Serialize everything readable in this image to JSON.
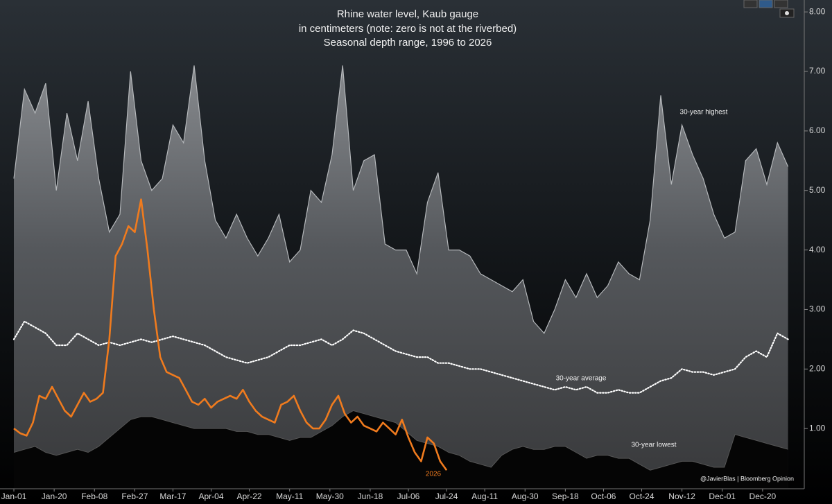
{
  "chart_data": {
    "type": "area-line",
    "title": "Rhine water level, Kaub gauge",
    "subtitle": [
      "in centimeters (note: zero is not at the riverbed)",
      "Seasonal depth range, 1996 to 2026"
    ],
    "source": "@JavierBlas | Bloomberg Opinion",
    "xlim": [
      0,
      372
    ],
    "xticks": [
      {
        "value": 0,
        "label": "Jan-01"
      },
      {
        "value": 19,
        "label": "Jan-20"
      },
      {
        "value": 38,
        "label": "Feb-08"
      },
      {
        "value": 57,
        "label": "Feb-27"
      },
      {
        "value": 75,
        "label": "Mar-17"
      },
      {
        "value": 93,
        "label": "Apr-04"
      },
      {
        "value": 111,
        "label": "Apr-22"
      },
      {
        "value": 130,
        "label": "May-11"
      },
      {
        "value": 149,
        "label": "May-30"
      },
      {
        "value": 168,
        "label": "Jun-18"
      },
      {
        "value": 186,
        "label": "Jul-06"
      },
      {
        "value": 204,
        "label": "Jul-24"
      },
      {
        "value": 222,
        "label": "Aug-11"
      },
      {
        "value": 241,
        "label": "Aug-30"
      },
      {
        "value": 260,
        "label": "Sep-18"
      },
      {
        "value": 278,
        "label": "Oct-06"
      },
      {
        "value": 296,
        "label": "Oct-24"
      },
      {
        "value": 315,
        "label": "Nov-12"
      },
      {
        "value": 334,
        "label": "Dec-01"
      },
      {
        "value": 353,
        "label": "Dec-20"
      }
    ],
    "ylim": [
      0,
      8.2
    ],
    "yticks": [
      {
        "value": 1,
        "label": "1.00"
      },
      {
        "value": 2,
        "label": "2.00"
      },
      {
        "value": 3,
        "label": "3.00"
      },
      {
        "value": 4,
        "label": "4.00"
      },
      {
        "value": 5,
        "label": "5.00"
      },
      {
        "value": 6,
        "label": "6.00"
      },
      {
        "value": 7,
        "label": "7.00"
      },
      {
        "value": 8,
        "label": "8.00"
      }
    ],
    "series": [
      {
        "name": "30-year highest",
        "style": "area",
        "color": "#8a8d91",
        "x": [
          0,
          5,
          10,
          15,
          20,
          25,
          30,
          35,
          40,
          45,
          50,
          55,
          60,
          65,
          70,
          75,
          80,
          85,
          90,
          95,
          100,
          105,
          110,
          115,
          120,
          125,
          130,
          135,
          140,
          145,
          150,
          155,
          160,
          165,
          170,
          175,
          180,
          185,
          190,
          195,
          200,
          205,
          210,
          215,
          220,
          225,
          230,
          235,
          240,
          245,
          250,
          255,
          260,
          265,
          270,
          275,
          280,
          285,
          290,
          295,
          300,
          305,
          310,
          315,
          320,
          325,
          330,
          335,
          340,
          345,
          350,
          355,
          360,
          365
        ],
        "values": [
          5.2,
          6.7,
          6.3,
          6.8,
          5.0,
          6.3,
          5.5,
          6.5,
          5.2,
          4.3,
          4.6,
          7.0,
          5.5,
          5.0,
          5.2,
          6.1,
          5.8,
          7.1,
          5.5,
          4.5,
          4.2,
          4.6,
          4.2,
          3.9,
          4.2,
          4.6,
          3.8,
          4.0,
          5.0,
          4.8,
          5.6,
          7.1,
          5.0,
          5.5,
          5.6,
          4.1,
          4.0,
          4.0,
          3.6,
          4.8,
          5.3,
          4.0,
          4.0,
          3.9,
          3.6,
          3.5,
          3.4,
          3.3,
          3.5,
          2.8,
          2.6,
          3.0,
          3.5,
          3.2,
          3.6,
          3.2,
          3.4,
          3.8,
          3.6,
          3.5,
          4.5,
          6.6,
          5.1,
          6.1,
          5.6,
          5.2,
          4.6,
          4.2,
          4.3,
          5.5,
          5.7,
          5.1,
          5.8,
          5.4
        ]
      },
      {
        "name": "30-year average",
        "style": "dotted",
        "color": "#ffffff",
        "x": [
          0,
          5,
          10,
          15,
          20,
          25,
          30,
          35,
          40,
          45,
          50,
          55,
          60,
          65,
          70,
          75,
          80,
          85,
          90,
          95,
          100,
          105,
          110,
          115,
          120,
          125,
          130,
          135,
          140,
          145,
          150,
          155,
          160,
          165,
          170,
          175,
          180,
          185,
          190,
          195,
          200,
          205,
          210,
          215,
          220,
          225,
          230,
          235,
          240,
          245,
          250,
          255,
          260,
          265,
          270,
          275,
          280,
          285,
          290,
          295,
          300,
          305,
          310,
          315,
          320,
          325,
          330,
          335,
          340,
          345,
          350,
          355,
          360,
          365
        ],
        "values": [
          2.5,
          2.8,
          2.7,
          2.6,
          2.4,
          2.4,
          2.6,
          2.5,
          2.4,
          2.45,
          2.4,
          2.45,
          2.5,
          2.45,
          2.5,
          2.55,
          2.5,
          2.45,
          2.4,
          2.3,
          2.2,
          2.15,
          2.1,
          2.15,
          2.2,
          2.3,
          2.4,
          2.4,
          2.45,
          2.5,
          2.4,
          2.5,
          2.65,
          2.6,
          2.5,
          2.4,
          2.3,
          2.25,
          2.2,
          2.2,
          2.1,
          2.1,
          2.05,
          2.0,
          2.0,
          1.95,
          1.9,
          1.85,
          1.8,
          1.75,
          1.7,
          1.65,
          1.7,
          1.65,
          1.7,
          1.6,
          1.6,
          1.65,
          1.6,
          1.6,
          1.7,
          1.8,
          1.85,
          2.0,
          1.95,
          1.95,
          1.9,
          1.95,
          2.0,
          2.2,
          2.3,
          2.2,
          2.6,
          2.5
        ]
      },
      {
        "name": "30-year lowest",
        "style": "floor",
        "color": "#050505",
        "x": [
          0,
          5,
          10,
          15,
          20,
          25,
          30,
          35,
          40,
          45,
          50,
          55,
          60,
          65,
          70,
          75,
          80,
          85,
          90,
          95,
          100,
          105,
          110,
          115,
          120,
          125,
          130,
          135,
          140,
          145,
          150,
          155,
          160,
          165,
          170,
          175,
          180,
          185,
          190,
          195,
          200,
          205,
          210,
          215,
          220,
          225,
          230,
          235,
          240,
          245,
          250,
          255,
          260,
          265,
          270,
          275,
          280,
          285,
          290,
          295,
          300,
          305,
          310,
          315,
          320,
          325,
          330,
          335,
          340,
          345,
          350,
          355,
          360,
          365
        ],
        "values": [
          0.6,
          0.65,
          0.7,
          0.6,
          0.55,
          0.6,
          0.65,
          0.6,
          0.7,
          0.85,
          1.0,
          1.15,
          1.2,
          1.2,
          1.15,
          1.1,
          1.05,
          1.0,
          1.0,
          1.0,
          1.0,
          0.95,
          0.95,
          0.9,
          0.9,
          0.85,
          0.8,
          0.85,
          0.85,
          0.95,
          1.05,
          1.2,
          1.3,
          1.25,
          1.2,
          1.15,
          1.1,
          0.95,
          0.8,
          0.75,
          0.7,
          0.6,
          0.55,
          0.45,
          0.4,
          0.35,
          0.55,
          0.65,
          0.7,
          0.65,
          0.65,
          0.7,
          0.7,
          0.6,
          0.5,
          0.55,
          0.55,
          0.5,
          0.5,
          0.4,
          0.3,
          0.35,
          0.4,
          0.45,
          0.45,
          0.4,
          0.35,
          0.35,
          0.9,
          0.85,
          0.8,
          0.75,
          0.7,
          0.65
        ]
      },
      {
        "name": "2026",
        "style": "line",
        "color": "#f07b1e",
        "x": [
          0,
          3,
          6,
          9,
          12,
          15,
          18,
          21,
          24,
          27,
          30,
          33,
          36,
          39,
          42,
          45,
          48,
          51,
          54,
          57,
          60,
          63,
          66,
          69,
          72,
          75,
          78,
          81,
          84,
          87,
          90,
          93,
          96,
          99,
          102,
          105,
          108,
          111,
          114,
          117,
          120,
          123,
          126,
          129,
          132,
          135,
          138,
          141,
          144,
          147,
          150,
          153,
          156,
          159,
          162,
          165,
          168,
          171,
          174,
          177,
          180,
          183,
          186,
          189,
          192,
          195,
          198,
          201,
          204
        ],
        "values": [
          1.0,
          0.92,
          0.88,
          1.1,
          1.55,
          1.5,
          1.7,
          1.5,
          1.3,
          1.2,
          1.4,
          1.6,
          1.45,
          1.5,
          1.6,
          2.5,
          3.9,
          4.1,
          4.4,
          4.3,
          4.85,
          4.0,
          3.0,
          2.2,
          1.95,
          1.9,
          1.85,
          1.65,
          1.45,
          1.4,
          1.5,
          1.35,
          1.45,
          1.5,
          1.55,
          1.5,
          1.65,
          1.45,
          1.3,
          1.2,
          1.15,
          1.1,
          1.4,
          1.45,
          1.55,
          1.3,
          1.1,
          1.0,
          1.0,
          1.15,
          1.4,
          1.55,
          1.25,
          1.1,
          1.2,
          1.05,
          1.0,
          0.95,
          1.1,
          1.0,
          0.9,
          1.15,
          0.85,
          0.6,
          0.45,
          0.85,
          0.75,
          0.45,
          0.3
        ]
      }
    ]
  }
}
